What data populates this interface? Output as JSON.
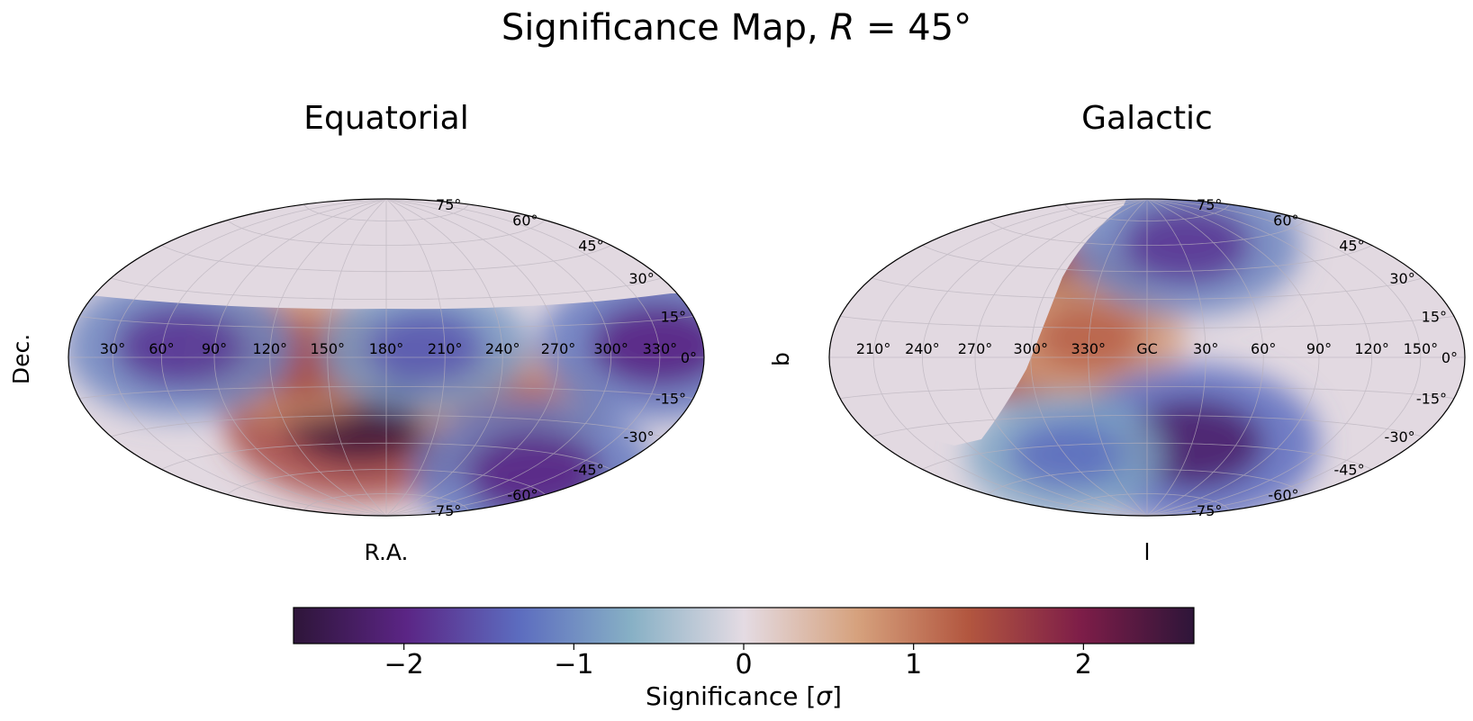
{
  "figure": {
    "title_prefix": "Significance Map, ",
    "title_var": "R",
    "title_suffix": " = 45°"
  },
  "panels": [
    {
      "title": "Equatorial",
      "xlabel": "R.A.",
      "ylabel": "Dec.",
      "lon_ticks": [
        "330°",
        "300°",
        "270°",
        "240°",
        "210°",
        "180°",
        "150°",
        "120°",
        "90°",
        "60°",
        "30°"
      ],
      "lat_ticks": [
        "75°",
        "60°",
        "45°",
        "30°",
        "15°",
        "0°",
        "-15°",
        "-30°",
        "-45°",
        "-60°",
        "-75°"
      ],
      "coverage": "Dec < ~20°; region north of ~20° Dec unobserved (masked grey)"
    },
    {
      "title": "Galactic",
      "xlabel": "l",
      "ylabel": "b",
      "lon_ticks": [
        "150°",
        "120°",
        "90°",
        "60°",
        "30°",
        "GC",
        "330°",
        "300°",
        "270°",
        "240°",
        "210°"
      ],
      "lat_ticks": [
        "75°",
        "60°",
        "45°",
        "30°",
        "15°",
        "0°",
        "-15°",
        "-30°",
        "-45°",
        "-60°",
        "-75°"
      ],
      "coverage": "masked region on left (l ≈ 60°–180°) unobserved"
    }
  ],
  "colorbar": {
    "label_prefix": "Significance [",
    "label_var": "σ",
    "label_suffix": "]",
    "ticks": [
      "−2",
      "−1",
      "0",
      "1",
      "2"
    ],
    "tick_values": [
      -2,
      -1,
      0,
      1,
      2
    ],
    "range": [
      -2.65,
      2.65
    ],
    "colormap": "twilight_shifted",
    "stops": [
      "#2e1539",
      "#5b2585",
      "#5c6cbf",
      "#87b0c5",
      "#e4dbe3",
      "#d6a27e",
      "#b2563f",
      "#7d1d48",
      "#2e1539"
    ]
  },
  "colors": {
    "masked": "#e2d9e1",
    "grid": "#c7c1c9",
    "outline": "#000000"
  },
  "chart_data": {
    "type": "heatmap",
    "projection": "hammer/aitoff all-sky",
    "title": "Significance Map, R = 45°",
    "zlabel": "Significance [σ]",
    "zlim": [
      -2.65,
      2.65
    ],
    "maps": [
      {
        "name": "Equatorial",
        "xlabel": "R.A.",
        "ylabel": "Dec.",
        "features": [
          {
            "lon": 165,
            "lat": -30,
            "value": 2.5,
            "note": "strongest excess"
          },
          {
            "lon": 130,
            "lat": 0,
            "value": 1.5
          },
          {
            "lon": 250,
            "lat": -25,
            "value": 1.2
          },
          {
            "lon": 200,
            "lat": 5,
            "value": -1.5
          },
          {
            "lon": 330,
            "lat": 5,
            "value": -2.0
          },
          {
            "lon": 70,
            "lat": 5,
            "value": -1.8
          },
          {
            "lon": 310,
            "lat": -55,
            "value": -2.0
          }
        ]
      },
      {
        "name": "Galactic",
        "xlabel": "l",
        "ylabel": "b",
        "features": [
          {
            "lon": 290,
            "lat": 20,
            "value": 2.5,
            "note": "strongest excess"
          },
          {
            "lon": 250,
            "lat": 20,
            "value": 1.8
          },
          {
            "lon": 330,
            "lat": 10,
            "value": 1.2
          },
          {
            "lon": 35,
            "lat": 60,
            "value": -1.8
          },
          {
            "lon": 30,
            "lat": -45,
            "value": -2.2
          },
          {
            "lon": 300,
            "lat": -50,
            "value": -1.3
          }
        ]
      }
    ]
  }
}
